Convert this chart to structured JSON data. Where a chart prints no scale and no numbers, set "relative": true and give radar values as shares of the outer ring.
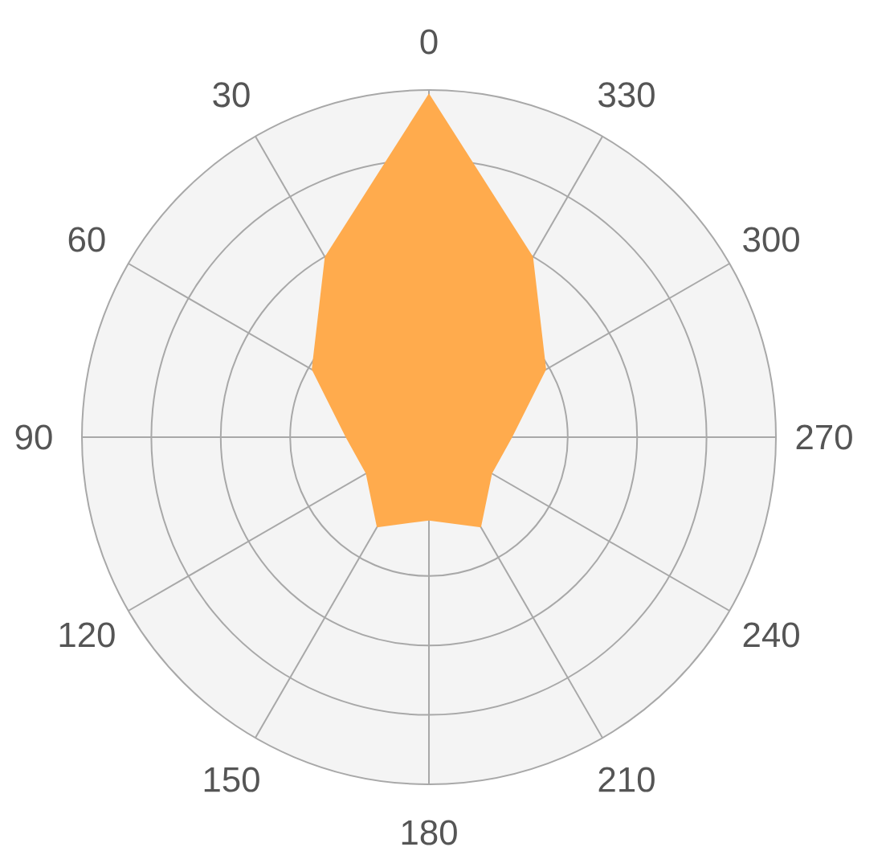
{
  "chart_data": {
    "type": "radar",
    "relative": true,
    "grid": true,
    "categories": [
      "0",
      "330",
      "300",
      "270",
      "240",
      "210",
      "180",
      "150",
      "120",
      "90",
      "60",
      "30"
    ],
    "series": [
      {
        "color": "#ffab4d",
        "values": [
          0.99,
          0.6,
          0.39,
          0.24,
          0.21,
          0.3,
          0.24,
          0.3,
          0.21,
          0.24,
          0.39,
          0.6
        ]
      }
    ]
  }
}
